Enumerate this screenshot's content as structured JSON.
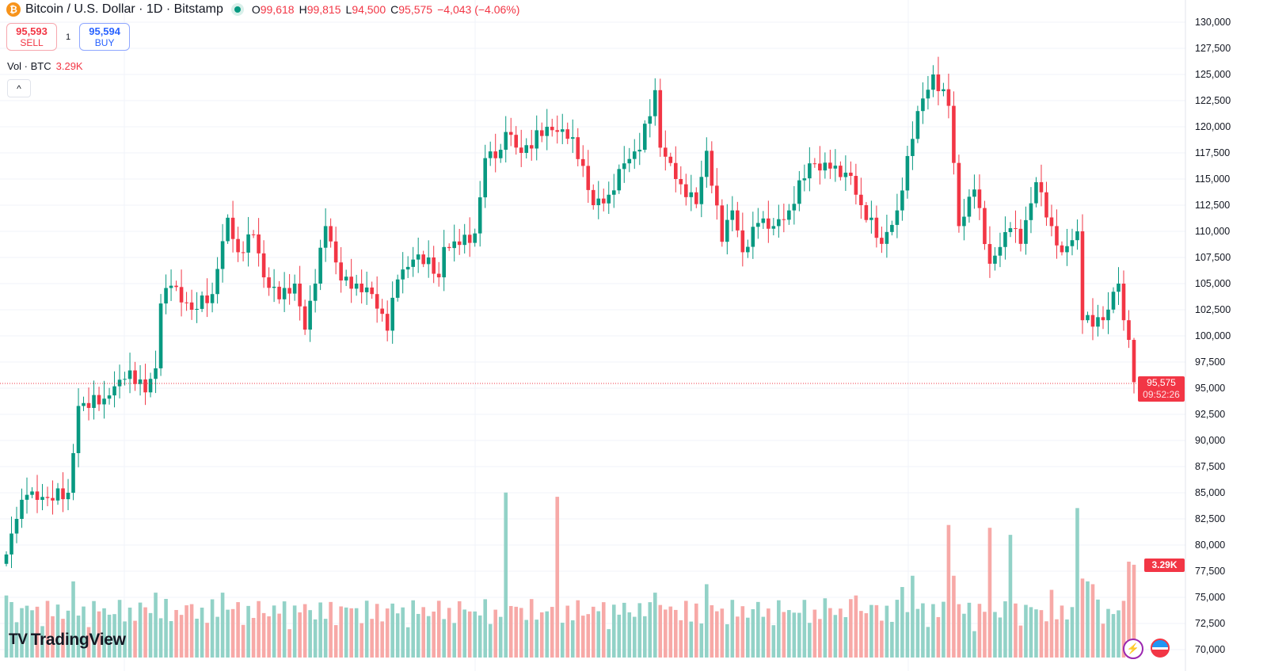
{
  "header": {
    "symbol_title": "Bitcoin / U.S. Dollar · 1D · Bitstamp",
    "open_label": "O",
    "open": "99,618",
    "high_label": "H",
    "high": "99,815",
    "low_label": "L",
    "low": "94,500",
    "close_label": "C",
    "close": "95,575",
    "change": "−4,043 (−4.06%)"
  },
  "trade": {
    "sell_price": "95,593",
    "sell_label": "SELL",
    "quantity": "1",
    "buy_price": "95,594",
    "buy_label": "BUY"
  },
  "volume_legend": {
    "label": "Vol · BTC",
    "value": "3.29K"
  },
  "collapse_icon": "^",
  "price_tag": {
    "price": "95,575",
    "countdown": "09:52:26"
  },
  "volume_tag": "3.29K",
  "logo": {
    "text": "TradingView"
  },
  "colors": {
    "up": "#089981",
    "down": "#f23645",
    "vol_up": "#92d2c7",
    "vol_down": "#f7a9a7"
  },
  "chart_data": {
    "type": "candlestick",
    "title": "Bitcoin / U.S. Dollar · 1D · Bitstamp",
    "ylim": [
      70000,
      130000
    ],
    "y_ticks": [
      "130,000",
      "127,500",
      "125,000",
      "122,500",
      "120,000",
      "117,500",
      "115,000",
      "112,500",
      "110,000",
      "107,500",
      "105,000",
      "102,500",
      "100,000",
      "97,500",
      "95,000",
      "92,500",
      "90,000",
      "87,500",
      "85,000",
      "82,500",
      "80,000",
      "77,500",
      "75,000",
      "72,500",
      "70,000"
    ],
    "candle_count": 220,
    "close_keypoints": [
      [
        0,
        79100
      ],
      [
        2,
        82500
      ],
      [
        4,
        84800
      ],
      [
        8,
        84500
      ],
      [
        12,
        85000
      ],
      [
        14,
        93300
      ],
      [
        19,
        94000
      ],
      [
        24,
        96700
      ],
      [
        27,
        94600
      ],
      [
        29,
        96900
      ],
      [
        30,
        103100
      ],
      [
        32,
        104800
      ],
      [
        36,
        102500
      ],
      [
        40,
        104000
      ],
      [
        41,
        106400
      ],
      [
        43,
        111300
      ],
      [
        45,
        108000
      ],
      [
        48,
        109700
      ],
      [
        50,
        105600
      ],
      [
        53,
        103500
      ],
      [
        56,
        105000
      ],
      [
        58,
        100600
      ],
      [
        60,
        105000
      ],
      [
        62,
        110500
      ],
      [
        65,
        105300
      ],
      [
        68,
        105000
      ],
      [
        71,
        104000
      ],
      [
        74,
        100500
      ],
      [
        76,
        105400
      ],
      [
        79,
        107300
      ],
      [
        82,
        107500
      ],
      [
        84,
        105600
      ],
      [
        85,
        108500
      ],
      [
        88,
        108700
      ],
      [
        91,
        109800
      ],
      [
        93,
        117000
      ],
      [
        96,
        117800
      ],
      [
        97,
        119500
      ],
      [
        100,
        117500
      ],
      [
        105,
        120000
      ],
      [
        110,
        119000
      ],
      [
        114,
        112500
      ],
      [
        117,
        113500
      ],
      [
        120,
        116500
      ],
      [
        123,
        117800
      ],
      [
        126,
        123500
      ],
      [
        127,
        118000
      ],
      [
        131,
        114500
      ],
      [
        134,
        112600
      ],
      [
        136,
        117700
      ],
      [
        139,
        109000
      ],
      [
        141,
        112000
      ],
      [
        143,
        108000
      ],
      [
        146,
        110800
      ],
      [
        149,
        110500
      ],
      [
        152,
        112000
      ],
      [
        156,
        116500
      ],
      [
        160,
        116000
      ],
      [
        164,
        115300
      ],
      [
        166,
        112500
      ],
      [
        170,
        108800
      ],
      [
        173,
        112000
      ],
      [
        175,
        117200
      ],
      [
        177,
        121500
      ],
      [
        180,
        125000
      ],
      [
        183,
        122000
      ],
      [
        185,
        110500
      ],
      [
        188,
        114000
      ],
      [
        191,
        106900
      ],
      [
        193,
        108500
      ],
      [
        195,
        110300
      ],
      [
        197,
        108800
      ],
      [
        200,
        114700
      ],
      [
        203,
        110500
      ],
      [
        205,
        108000
      ],
      [
        208,
        110000
      ],
      [
        209,
        101500
      ],
      [
        213,
        101500
      ],
      [
        216,
        105000
      ],
      [
        217,
        101500
      ],
      [
        218,
        99618
      ],
      [
        219,
        95575
      ]
    ],
    "last_candle": {
      "open": 99618,
      "high": 99815,
      "low": 94500,
      "close": 95575
    },
    "volume_unit": "K BTC",
    "volume_base_k": 1.6,
    "volume_spikes_k": [
      [
        0,
        2.2
      ],
      [
        13,
        2.7
      ],
      [
        29,
        2.3
      ],
      [
        42,
        2.3
      ],
      [
        97,
        5.85
      ],
      [
        99,
        1.8
      ],
      [
        107,
        5.7
      ],
      [
        126,
        2.3
      ],
      [
        136,
        2.6
      ],
      [
        159,
        2.1
      ],
      [
        165,
        2.2
      ],
      [
        174,
        2.5
      ],
      [
        176,
        2.9
      ],
      [
        183,
        4.7
      ],
      [
        184,
        2.9
      ],
      [
        191,
        4.6
      ],
      [
        195,
        4.35
      ],
      [
        203,
        2.4
      ],
      [
        208,
        5.3
      ],
      [
        209,
        2.8
      ],
      [
        210,
        2.7
      ],
      [
        211,
        2.6
      ],
      [
        213,
        1.2
      ],
      [
        218,
        3.4
      ],
      [
        219,
        3.29
      ]
    ]
  }
}
